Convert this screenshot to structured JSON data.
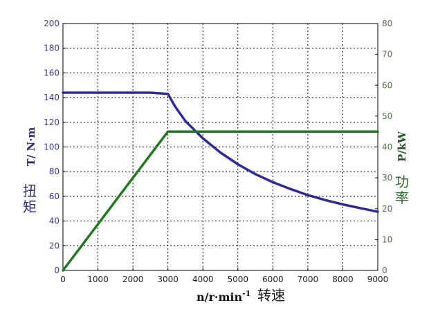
{
  "chart_data": {
    "type": "line",
    "x": [
      0,
      1000,
      2000,
      2500,
      3000,
      3200,
      3500,
      4000,
      4500,
      5000,
      5500,
      6000,
      6500,
      7000,
      7500,
      8000,
      8500,
      9000
    ],
    "series": [
      {
        "axis": "left",
        "color": "#2b2b9e",
        "values": [
          144,
          144,
          144,
          144,
          143,
          133,
          121,
          107,
          95.5,
          86,
          78,
          71.5,
          66,
          61,
          57,
          53.5,
          50.5,
          47.5
        ]
      },
      {
        "axis": "right",
        "color": "#1f7a1f",
        "values": [
          0,
          15,
          30,
          37.5,
          45,
          45,
          45,
          45,
          45,
          45,
          45,
          45,
          45,
          45,
          45,
          45,
          45,
          45
        ]
      }
    ],
    "xlim": [
      0,
      9000
    ],
    "xticks": [
      "0",
      "1000",
      "2000",
      "3000",
      "4000",
      "5000",
      "6000",
      "7000",
      "8000",
      "9000"
    ],
    "ylim_left": [
      0,
      200
    ],
    "yticks_left": [
      "0",
      "20",
      "40",
      "60",
      "80",
      "100",
      "120",
      "140",
      "160",
      "180",
      "200"
    ],
    "ylim_right": [
      0,
      80
    ],
    "yticks_right": [
      "0",
      "10",
      "20",
      "30",
      "40",
      "50",
      "60",
      "70",
      "80"
    ],
    "xlabel": "n/r·min",
    "xlabel_sup": "-1",
    "xlabel_cn": "转速",
    "ylabel_left": "T/ N·m",
    "ylabel_left_cn": [
      "扭",
      "矩"
    ],
    "ylabel_right": "P/kW",
    "ylabel_right_cn": [
      "功",
      "率"
    ],
    "grid": true
  }
}
